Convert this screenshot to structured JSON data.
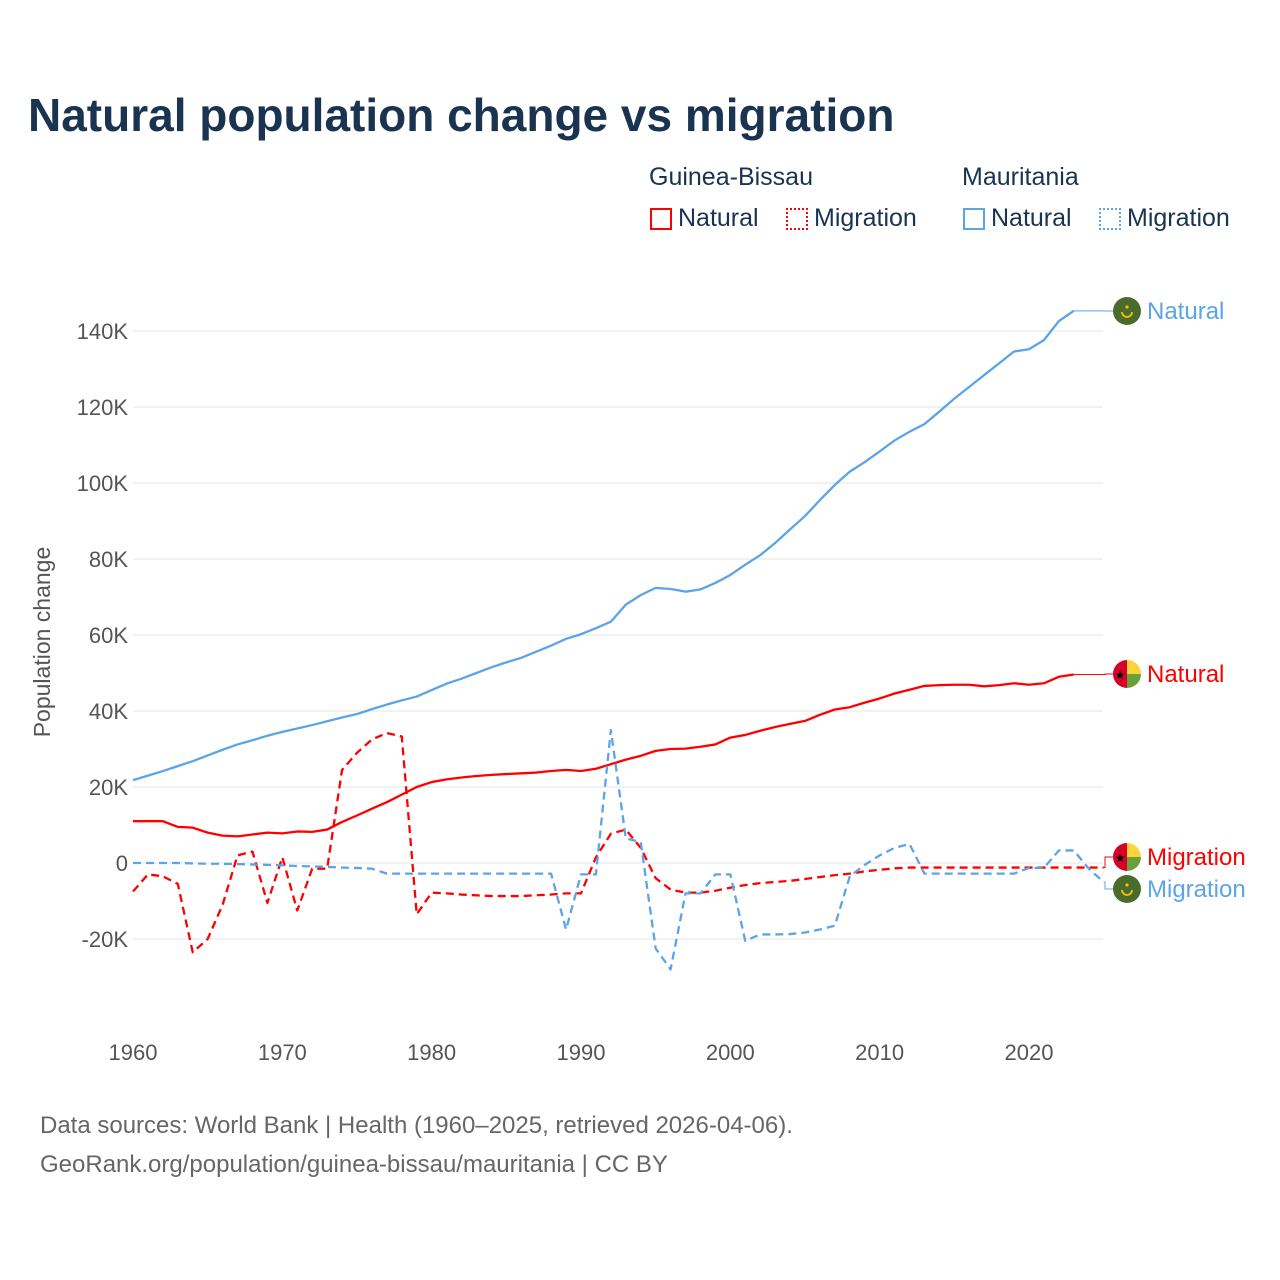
{
  "title": "Natural population change vs migration",
  "legend": {
    "groups": [
      {
        "name": "Guinea-Bissau",
        "items": [
          "Natural",
          "Migration"
        ],
        "color": "#ff0000"
      },
      {
        "name": "Mauritania",
        "items": [
          "Natural",
          "Migration"
        ],
        "color": "#5ba4e8"
      }
    ]
  },
  "footer": {
    "line1": "Data sources: World Bank | Health (1960–2025, retrieved 2026-04-06).",
    "line2": "GeoRank.org/population/guinea-bissau/mauritania | CC BY"
  },
  "chart_data": {
    "type": "line",
    "title": "Natural population change vs migration",
    "ylabel": "Population change",
    "xlabel": "",
    "xlim": [
      1960,
      2025
    ],
    "ylim": [
      -30000,
      150000
    ],
    "yticks": [
      -20000,
      0,
      20000,
      40000,
      60000,
      80000,
      100000,
      120000,
      140000
    ],
    "ytick_labels": [
      "-20K",
      "0",
      "20K",
      "40K",
      "60K",
      "80K",
      "100K",
      "120K",
      "140K"
    ],
    "xticks": [
      1960,
      1970,
      1980,
      1990,
      2000,
      2010,
      2020
    ],
    "xtick_labels": [
      "1960",
      "1970",
      "1980",
      "1990",
      "2000",
      "2010",
      "2020"
    ],
    "grid": true,
    "series": [
      {
        "name": "Natural",
        "country": "Guinea-Bissau",
        "color": "#ff0000",
        "dash": false,
        "start": 1960,
        "values_k": [
          11,
          11,
          11,
          9.5,
          9.3,
          8,
          7.2,
          7,
          7.5,
          8,
          7.8,
          8.3,
          8.2,
          8.8,
          10.8,
          12.5,
          14.3,
          16,
          18,
          20,
          21.3,
          22,
          22.5,
          22.9,
          23.2,
          23.4,
          23.6,
          23.8,
          24.2,
          24.5,
          24.2,
          24.8,
          26,
          27.2,
          28.2,
          29.5,
          30,
          30.1,
          30.6,
          31.2,
          33,
          33.7,
          34.8,
          35.8,
          36.6,
          37.4,
          39,
          40.4,
          41,
          42.2,
          43.3,
          44.6,
          45.6,
          46.6,
          46.8,
          46.9,
          46.9,
          46.5,
          46.8,
          47.3,
          46.9,
          47.3,
          49,
          49.6
        ]
      },
      {
        "name": "Migration",
        "country": "Guinea-Bissau",
        "color": "#ff0000",
        "dash": true,
        "start": 1960,
        "values_k": [
          -7.5,
          -3,
          -3.5,
          -5.5,
          -23.5,
          -20,
          -11,
          2,
          3,
          -10.5,
          1.5,
          -12.5,
          -1.5,
          -1.5,
          24.5,
          29,
          32.5,
          34.2,
          33.3,
          -13.5,
          -7.8,
          -8,
          -8.3,
          -8.5,
          -8.7,
          -8.7,
          -8.7,
          -8.5,
          -8.3,
          -8,
          -8,
          1.5,
          7.7,
          8.8,
          4,
          -4,
          -7,
          -7.8,
          -7.8,
          -7.3,
          -6.5,
          -5.8,
          -5.3,
          -5,
          -4.7,
          -4.2,
          -3.7,
          -3.2,
          -2.8,
          -2.2,
          -1.8,
          -1.4,
          -1.2,
          -1.2,
          -1.2,
          -1.2,
          -1.2,
          -1.2,
          -1.2,
          -1.2,
          -1.2,
          -1.2,
          -1.2,
          -1.2,
          -1.2,
          -1.2
        ]
      },
      {
        "name": "Natural",
        "country": "Mauritania",
        "color": "#5ba4e8",
        "dash": false,
        "start": 1960,
        "values_k": [
          21.8,
          23,
          24.2,
          25.5,
          26.8,
          28.3,
          29.8,
          31.2,
          32.3,
          33.5,
          34.5,
          35.4,
          36.3,
          37.3,
          38.3,
          39.2,
          40.5,
          41.7,
          42.8,
          43.8,
          45.5,
          47.2,
          48.5,
          50,
          51.5,
          52.8,
          54,
          55.6,
          57.2,
          59,
          60.2,
          61.8,
          63.5,
          68,
          70.5,
          72.4,
          72.1,
          71.4,
          72,
          73.7,
          75.8,
          78.5,
          81,
          84.2,
          87.8,
          91.3,
          95.5,
          99.5,
          103,
          105.5,
          108.3,
          111.2,
          113.5,
          115.5,
          118.8,
          122.2,
          125.3,
          128.4,
          131.5,
          134.6,
          135.2,
          137.6,
          142.6,
          145.3
        ]
      },
      {
        "name": "Migration",
        "country": "Mauritania",
        "color": "#5ba4e8",
        "dash": true,
        "start": 1960,
        "values_k": [
          0,
          0,
          0,
          0,
          -0.1,
          -0.2,
          -0.2,
          -0.3,
          -0.4,
          -0.5,
          -0.6,
          -0.8,
          -0.9,
          -1,
          -1.2,
          -1.3,
          -1.5,
          -2.8,
          -2.8,
          -2.8,
          -2.8,
          -2.8,
          -2.8,
          -2.8,
          -2.8,
          -2.8,
          -2.8,
          -2.8,
          -2.8,
          -17.5,
          -3,
          -3,
          35,
          6.5,
          5.5,
          -22.5,
          -28,
          -8,
          -8,
          -3,
          -3,
          -20.5,
          -18.8,
          -18.8,
          -18.7,
          -18.3,
          -17.5,
          -16.5,
          -3.5,
          -0.5,
          2,
          4,
          5,
          -2.8,
          -2.8,
          -2.8,
          -2.8,
          -2.8,
          -2.8,
          -2.8,
          -1.3,
          -1.3,
          3.3,
          3.3,
          -1.5,
          -5
        ]
      }
    ],
    "end_labels": [
      {
        "text": "Natural",
        "country": "Mauritania",
        "color": "#5ba4e8"
      },
      {
        "text": "Natural",
        "country": "Guinea-Bissau",
        "color": "#ff0000"
      },
      {
        "text": "Migration",
        "country": "Guinea-Bissau",
        "color": "#ff0000"
      },
      {
        "text": "Migration",
        "country": "Mauritania",
        "color": "#5ba4e8"
      }
    ]
  }
}
